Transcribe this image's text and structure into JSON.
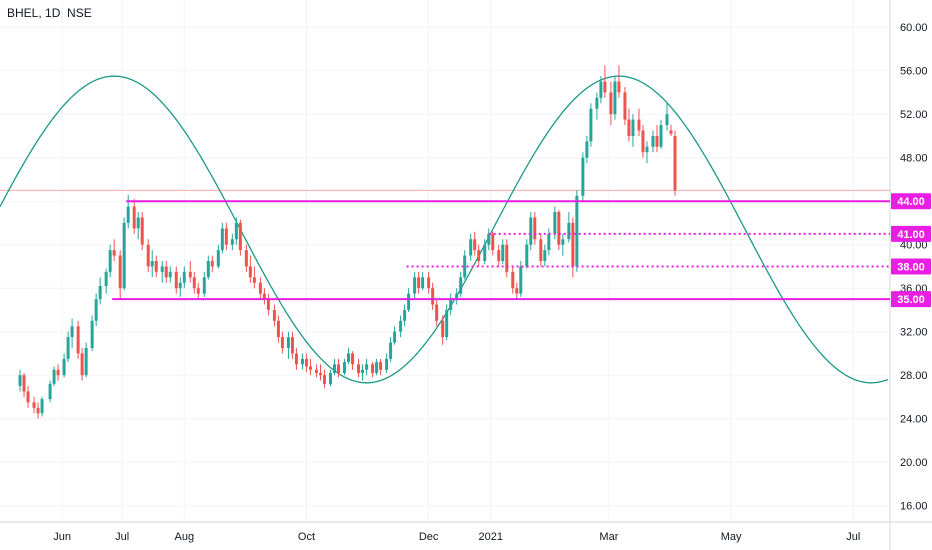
{
  "chart_data": {
    "type": "candlestick",
    "title": "BHEL, 1D, NSE",
    "x_ticks": [
      "Jun",
      "Jul",
      "Aug",
      "Oct",
      "Dec",
      "2021",
      "Mar",
      "May",
      "Jul"
    ],
    "y_ticks": [
      "60.00",
      "56.00",
      "52.00",
      "48.00",
      "44.00",
      "40.00",
      "36.00",
      "32.00",
      "28.00",
      "24.00",
      "20.00",
      "16.00"
    ],
    "ylim": [
      14.5,
      62.5
    ],
    "grid": true,
    "colors": {
      "up": "#26a69a",
      "down": "#ef5350",
      "level": "#e91ee3",
      "curve": "#1a9987",
      "current": "#f7a8a8"
    },
    "levels": [
      {
        "value": 44.0,
        "label": "44.00",
        "style": "solid",
        "from": "2020-07-03"
      },
      {
        "value": 41.0,
        "label": "41.00",
        "style": "dotted",
        "from": "2020-12-31"
      },
      {
        "value": 38.0,
        "label": "38.00",
        "style": "dotted",
        "from": "2020-11-20"
      },
      {
        "value": 35.0,
        "label": "35.00",
        "style": "solid",
        "from": "2020-06-26"
      }
    ],
    "current_price": 45.0,
    "cycle_curve": {
      "peak": 55.5,
      "trough": 27.3,
      "peak_dates": [
        "2020-06-27",
        "2021-03-06"
      ],
      "trough_date": "2020-11-04"
    },
    "candles": [
      [
        "2020-05-11",
        27,
        28.5,
        26.5,
        28
      ],
      [
        "2020-05-13",
        28,
        28.2,
        26,
        26.5
      ],
      [
        "2020-05-15",
        26.5,
        27,
        25,
        25.5
      ],
      [
        "2020-05-18",
        25.5,
        26,
        24.5,
        25
      ],
      [
        "2020-05-20",
        25,
        25.5,
        24,
        24.5
      ],
      [
        "2020-05-22",
        24.5,
        26,
        24.2,
        25.8
      ],
      [
        "2020-05-26",
        25.8,
        27.5,
        25.5,
        27.2
      ],
      [
        "2020-05-28",
        27.2,
        28.8,
        27,
        28.5
      ],
      [
        "2020-05-30",
        28.5,
        29,
        27.5,
        28
      ],
      [
        "2020-06-02",
        28,
        30,
        27.8,
        29.5
      ],
      [
        "2020-06-04",
        29.5,
        32,
        29.2,
        31.5
      ],
      [
        "2020-06-06",
        31.5,
        33.2,
        30.5,
        32.5
      ],
      [
        "2020-06-09",
        32.5,
        33,
        29.5,
        30
      ],
      [
        "2020-06-11",
        30,
        30.5,
        27.5,
        28
      ],
      [
        "2020-06-13",
        28,
        31,
        27.8,
        30.5
      ],
      [
        "2020-06-16",
        30.5,
        33.5,
        30.2,
        33
      ],
      [
        "2020-06-18",
        33,
        35.5,
        32.5,
        35
      ],
      [
        "2020-06-20",
        35,
        37,
        34.5,
        36.2
      ],
      [
        "2020-06-23",
        36.2,
        37.8,
        35.5,
        37.5
      ],
      [
        "2020-06-25",
        37.5,
        40,
        37,
        39.5
      ],
      [
        "2020-06-27",
        39.5,
        40.5,
        38.5,
        39
      ],
      [
        "2020-06-30",
        39,
        39.5,
        35,
        36
      ],
      [
        "2020-07-02",
        36,
        42.5,
        35.8,
        42
      ],
      [
        "2020-07-04",
        42,
        44.6,
        41.5,
        43.5
      ],
      [
        "2020-07-07",
        43.5,
        44.2,
        41,
        41.5
      ],
      [
        "2020-07-09",
        41.5,
        43,
        40.5,
        42.5
      ],
      [
        "2020-07-11",
        42.5,
        43,
        39.5,
        40
      ],
      [
        "2020-07-14",
        40,
        40.5,
        37.5,
        38
      ],
      [
        "2020-07-16",
        38,
        39.5,
        37,
        38.5
      ],
      [
        "2020-07-18",
        38.5,
        39,
        37,
        37.5
      ],
      [
        "2020-07-21",
        37.5,
        38.5,
        36.5,
        38
      ],
      [
        "2020-07-23",
        38,
        38.5,
        36.5,
        37
      ],
      [
        "2020-07-25",
        37,
        38,
        36.5,
        37.5
      ],
      [
        "2020-07-28",
        37.5,
        38,
        35.5,
        36
      ],
      [
        "2020-07-30",
        36,
        37,
        35.2,
        36.5
      ],
      [
        "2020-08-01",
        36.5,
        38,
        36,
        37.5
      ],
      [
        "2020-08-04",
        37.5,
        38.5,
        36.5,
        37
      ],
      [
        "2020-08-06",
        37,
        37.5,
        35.5,
        36
      ],
      [
        "2020-08-08",
        36,
        36.5,
        35,
        35.5
      ],
      [
        "2020-08-11",
        35.5,
        37.5,
        35.2,
        37
      ],
      [
        "2020-08-13",
        37,
        39,
        36.8,
        38.5
      ],
      [
        "2020-08-15",
        38.5,
        39,
        37.5,
        38
      ],
      [
        "2020-08-18",
        38,
        40,
        37.8,
        39.5
      ],
      [
        "2020-08-20",
        39.5,
        42,
        39.2,
        41.5
      ],
      [
        "2020-08-22",
        41.5,
        42,
        39.5,
        40
      ],
      [
        "2020-08-25",
        40,
        41,
        39.5,
        40.5
      ],
      [
        "2020-08-27",
        40.5,
        42.5,
        40,
        42
      ],
      [
        "2020-08-29",
        42,
        42.3,
        39,
        39.5
      ],
      [
        "2020-09-01",
        39.5,
        40,
        37.5,
        38
      ],
      [
        "2020-09-03",
        38,
        39,
        36.5,
        37
      ],
      [
        "2020-09-05",
        37,
        38,
        36,
        36.5
      ],
      [
        "2020-09-08",
        36.5,
        37,
        35,
        35.5
      ],
      [
        "2020-09-10",
        35.5,
        36,
        34.5,
        35
      ],
      [
        "2020-09-12",
        35,
        35.5,
        33.5,
        34
      ],
      [
        "2020-09-15",
        34,
        34.5,
        32.5,
        33
      ],
      [
        "2020-09-17",
        33,
        33.5,
        31,
        31.5
      ],
      [
        "2020-09-19",
        31.5,
        32,
        30,
        30.5
      ],
      [
        "2020-09-22",
        30.5,
        32,
        29.5,
        31.5
      ],
      [
        "2020-09-24",
        31.5,
        32,
        29.5,
        30
      ],
      [
        "2020-09-26",
        30,
        30.5,
        28.5,
        29
      ],
      [
        "2020-09-29",
        29,
        30,
        28.5,
        29.5
      ],
      [
        "2020-10-01",
        29.5,
        30,
        28.3,
        28.8
      ],
      [
        "2020-10-03",
        28.8,
        29.5,
        28,
        28.5
      ],
      [
        "2020-10-06",
        28.5,
        29,
        27.8,
        28.2
      ],
      [
        "2020-10-08",
        28.2,
        29,
        27.5,
        28
      ],
      [
        "2020-10-10",
        28,
        28.5,
        26.8,
        27.2
      ],
      [
        "2020-10-13",
        27.2,
        28.5,
        27,
        28.2
      ],
      [
        "2020-10-15",
        28.2,
        29.5,
        28,
        29
      ],
      [
        "2020-10-17",
        29,
        29.5,
        27.8,
        28.2
      ],
      [
        "2020-10-20",
        28.2,
        29.5,
        28,
        29.2
      ],
      [
        "2020-10-22",
        29.2,
        30.5,
        29,
        30
      ],
      [
        "2020-10-24",
        30,
        30.2,
        28.5,
        29
      ],
      [
        "2020-10-27",
        29,
        29.5,
        27.8,
        28.2
      ],
      [
        "2020-10-29",
        28.2,
        29,
        27.5,
        28.5
      ],
      [
        "2020-10-31",
        28.5,
        29.5,
        28,
        29
      ],
      [
        "2020-11-03",
        29,
        29.2,
        27.8,
        28.2
      ],
      [
        "2020-11-05",
        28.2,
        29.5,
        28,
        29.2
      ],
      [
        "2020-11-07",
        29.2,
        29.5,
        28,
        28.5
      ],
      [
        "2020-11-10",
        28.5,
        30,
        28.2,
        29.5
      ],
      [
        "2020-11-12",
        29.5,
        31.5,
        29.2,
        31
      ],
      [
        "2020-11-14",
        31,
        32.5,
        30.8,
        32
      ],
      [
        "2020-11-17",
        32,
        33.5,
        31.5,
        33
      ],
      [
        "2020-11-19",
        33,
        34.5,
        32.5,
        34
      ],
      [
        "2020-11-21",
        34,
        36,
        33.8,
        35.5
      ],
      [
        "2020-11-24",
        35.5,
        37.5,
        35,
        37
      ],
      [
        "2020-11-26",
        37,
        37.5,
        35.5,
        36
      ],
      [
        "2020-11-28",
        36,
        37.5,
        35.8,
        37
      ],
      [
        "2020-12-01",
        37,
        37.5,
        35.5,
        36
      ],
      [
        "2020-12-03",
        36,
        36.5,
        34,
        34.5
      ],
      [
        "2020-12-05",
        34.5,
        35,
        32.5,
        33
      ],
      [
        "2020-12-08",
        33,
        33.5,
        30.8,
        31.5
      ],
      [
        "2020-12-10",
        31.5,
        34.5,
        31.2,
        34
      ],
      [
        "2020-12-12",
        34,
        35.5,
        33.5,
        35
      ],
      [
        "2020-12-15",
        35,
        36,
        34.5,
        35.5
      ],
      [
        "2020-12-17",
        35.5,
        37.5,
        35.2,
        37
      ],
      [
        "2020-12-19",
        37,
        39.5,
        36.8,
        39
      ],
      [
        "2020-12-22",
        39,
        41,
        38.5,
        40.5
      ],
      [
        "2020-12-24",
        40.5,
        41.2,
        39,
        39.5
      ],
      [
        "2020-12-26",
        39.5,
        40,
        38,
        38.5
      ],
      [
        "2020-12-29",
        38.5,
        40.5,
        38.2,
        40
      ],
      [
        "2020-12-31",
        40,
        41.5,
        39.5,
        41
      ],
      [
        "2021-01-02",
        41,
        41.2,
        39,
        39.5
      ],
      [
        "2021-01-05",
        39.5,
        40,
        38,
        38.5
      ],
      [
        "2021-01-07",
        38.5,
        40.5,
        38.2,
        40
      ],
      [
        "2021-01-09",
        40,
        40.5,
        37,
        37.5
      ],
      [
        "2021-01-12",
        37.5,
        38,
        35.5,
        36
      ],
      [
        "2021-01-14",
        36,
        36.5,
        35,
        35.5
      ],
      [
        "2021-01-16",
        35.5,
        38.5,
        35.2,
        38
      ],
      [
        "2021-01-19",
        38,
        40.5,
        37.8,
        40
      ],
      [
        "2021-01-21",
        40,
        43,
        39.5,
        42.5
      ],
      [
        "2021-01-23",
        42.5,
        43,
        40,
        40.5
      ],
      [
        "2021-01-26",
        40.5,
        41,
        38,
        38.5
      ],
      [
        "2021-01-28",
        38.5,
        40,
        38,
        39.5
      ],
      [
        "2021-01-30",
        39.5,
        41.5,
        39,
        41
      ],
      [
        "2021-02-02",
        41,
        43.5,
        40.5,
        43
      ],
      [
        "2021-02-04",
        43,
        43.2,
        39.5,
        40
      ],
      [
        "2021-02-06",
        40,
        41,
        39,
        40.5
      ],
      [
        "2021-02-09",
        40.5,
        43,
        40.2,
        42
      ],
      [
        "2021-02-11",
        42,
        42.5,
        37,
        38
      ],
      [
        "2021-02-13",
        38,
        45,
        37.5,
        44.5
      ],
      [
        "2021-02-16",
        44.5,
        48.5,
        44,
        48
      ],
      [
        "2021-02-18",
        48,
        50,
        47.5,
        49.5
      ],
      [
        "2021-02-20",
        49.5,
        53,
        49,
        52.5
      ],
      [
        "2021-02-23",
        52.5,
        54,
        51.5,
        53.5
      ],
      [
        "2021-02-25",
        53.5,
        55.5,
        53,
        55
      ],
      [
        "2021-02-27",
        55,
        56.5,
        53.5,
        54
      ],
      [
        "2021-03-02",
        54,
        55,
        51,
        52
      ],
      [
        "2021-03-04",
        52,
        55.5,
        51.5,
        55
      ],
      [
        "2021-03-06",
        55,
        56.5,
        53.5,
        54
      ],
      [
        "2021-03-09",
        54,
        54.5,
        51,
        51.5
      ],
      [
        "2021-03-11",
        51.5,
        52.5,
        49.5,
        50
      ],
      [
        "2021-03-13",
        50,
        52,
        49,
        51.5
      ],
      [
        "2021-03-16",
        51.5,
        52.5,
        50,
        50.5
      ],
      [
        "2021-03-18",
        50.5,
        51,
        48,
        48.5
      ],
      [
        "2021-03-20",
        48.5,
        49.5,
        47.5,
        49
      ],
      [
        "2021-03-23",
        49,
        50.5,
        48.5,
        50
      ],
      [
        "2021-03-25",
        50,
        51,
        48.5,
        49
      ],
      [
        "2021-03-27",
        49,
        51.5,
        48.8,
        51
      ],
      [
        "2021-03-30",
        51,
        53,
        50.5,
        52
      ],
      [
        "2021-04-01",
        50.5,
        51,
        50,
        50.2
      ],
      [
        "2021-04-03",
        50,
        50.5,
        44.5,
        45
      ]
    ]
  }
}
